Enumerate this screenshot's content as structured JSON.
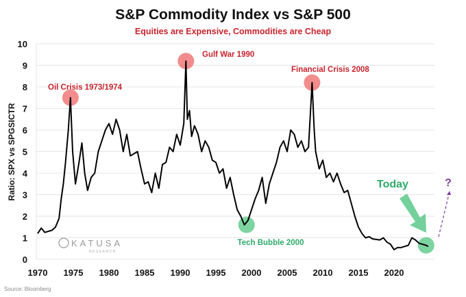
{
  "chart_data": {
    "type": "line",
    "title": "S&P Commodity Index vs S&P 500",
    "subtitle": "Equities are Expensive, Commodities are Cheap",
    "xlabel": "",
    "ylabel": "Ratio: SPX vs SPGSICTR",
    "xlim": [
      1970,
      2025
    ],
    "ylim": [
      0,
      10
    ],
    "x_ticks": [
      "1970",
      "1975",
      "1980",
      "1985",
      "1990",
      "1995",
      "2000",
      "2005",
      "2010",
      "2015",
      "2020"
    ],
    "y_ticks": [
      "0",
      "1",
      "2",
      "3",
      "4",
      "5",
      "6",
      "7",
      "8",
      "9",
      "10"
    ],
    "grid": "horizontal",
    "series": [
      {
        "color": "#000000",
        "x": [
          1970,
          1970.5,
          1971,
          1972,
          1972.5,
          1973,
          1973.3,
          1973.6,
          1973.9,
          1974.3,
          1974.6,
          1974.9,
          1975.3,
          1975.8,
          1976.2,
          1976.6,
          1977,
          1977.5,
          1978,
          1978.5,
          1979,
          1979.5,
          1980,
          1980.5,
          1981,
          1981.5,
          1982,
          1982.5,
          1983,
          1984,
          1984.5,
          1985,
          1985.5,
          1986,
          1986.5,
          1987,
          1987.5,
          1988,
          1988.5,
          1989,
          1989.5,
          1990,
          1990.5,
          1990.8,
          1991,
          1991.3,
          1991.6,
          1992,
          1992.5,
          1993,
          1993.5,
          1994,
          1994.5,
          1995,
          1995.5,
          1996,
          1996.5,
          1997,
          1997.5,
          1998,
          1998.5,
          1999,
          1999.5,
          2000,
          2000.5,
          2001,
          2001.5,
          2002,
          2002.5,
          2003,
          2003.5,
          2004,
          2004.5,
          2005,
          2005.5,
          2006,
          2006.5,
          2007,
          2007.5,
          2008,
          2008.5,
          2008.8,
          2009,
          2009.5,
          2010,
          2010.5,
          2011,
          2011.5,
          2012,
          2012.5,
          2013,
          2013.5,
          2014,
          2014.5,
          2015,
          2015.5,
          2016,
          2016.5,
          2017,
          2018,
          2018.5,
          2019,
          2019.5,
          2020,
          2020.5,
          2021,
          2021.5,
          2022,
          2022.5,
          2023,
          2023.5,
          2024,
          2024.5,
          2024.8
        ],
        "y": [
          1.2,
          1.45,
          1.25,
          1.35,
          1.5,
          1.9,
          2.8,
          3.5,
          4.5,
          6.0,
          7.5,
          5.0,
          3.5,
          4.5,
          5.4,
          4.0,
          3.2,
          3.8,
          4.0,
          5.0,
          5.5,
          6.0,
          6.3,
          5.8,
          6.5,
          6.0,
          5.0,
          5.8,
          4.8,
          5.0,
          4.2,
          3.5,
          3.6,
          3.1,
          4.0,
          3.3,
          4.4,
          4.5,
          5.2,
          5.0,
          5.8,
          5.3,
          6.3,
          9.2,
          6.5,
          6.9,
          5.7,
          6.2,
          5.8,
          5.0,
          5.5,
          5.2,
          4.6,
          4.5,
          4.0,
          4.2,
          3.3,
          3.8,
          3.0,
          2.3,
          2.0,
          1.6,
          1.8,
          2.3,
          2.8,
          3.2,
          3.8,
          2.6,
          3.5,
          4.0,
          4.5,
          5.2,
          5.5,
          5.0,
          6.0,
          5.8,
          5.2,
          5.5,
          5.0,
          5.2,
          8.2,
          6.0,
          5.0,
          4.2,
          4.6,
          3.8,
          4.0,
          3.6,
          4.0,
          3.5,
          3.1,
          3.2,
          2.6,
          2.0,
          1.5,
          1.2,
          1.0,
          1.05,
          0.95,
          0.9,
          1.0,
          0.8,
          0.7,
          0.45,
          0.55,
          0.55,
          0.6,
          0.65,
          1.0,
          0.9,
          0.75,
          0.7,
          0.65,
          0.6
        ]
      }
    ],
    "annotations": [
      {
        "text": "Oil Crisis 1973/1974",
        "x": 1974.6,
        "y": 7.5,
        "color": "#c8232c"
      },
      {
        "text": "Gulf War 1990",
        "x": 1990.8,
        "y": 9.2,
        "color": "#c8232c"
      },
      {
        "text": "Financial Crisis 2008",
        "x": 2008.5,
        "y": 8.2,
        "color": "#c8232c"
      },
      {
        "text": "Tech Bubble 2000",
        "x": 1999.3,
        "y": 1.6,
        "color": "#2eaa6a"
      },
      {
        "text": "Today",
        "x": 2024.5,
        "y": 0.65,
        "color": "#2eaa6a"
      }
    ],
    "projection_label": "?",
    "projection_color": "#7b3fa0",
    "highlight_colors": {
      "peak": "#f07070",
      "trough": "#5cc98a"
    }
  },
  "logo": {
    "name": "KATUSA",
    "sub": "RESEARCH"
  },
  "source": "Source: Bloomberg"
}
